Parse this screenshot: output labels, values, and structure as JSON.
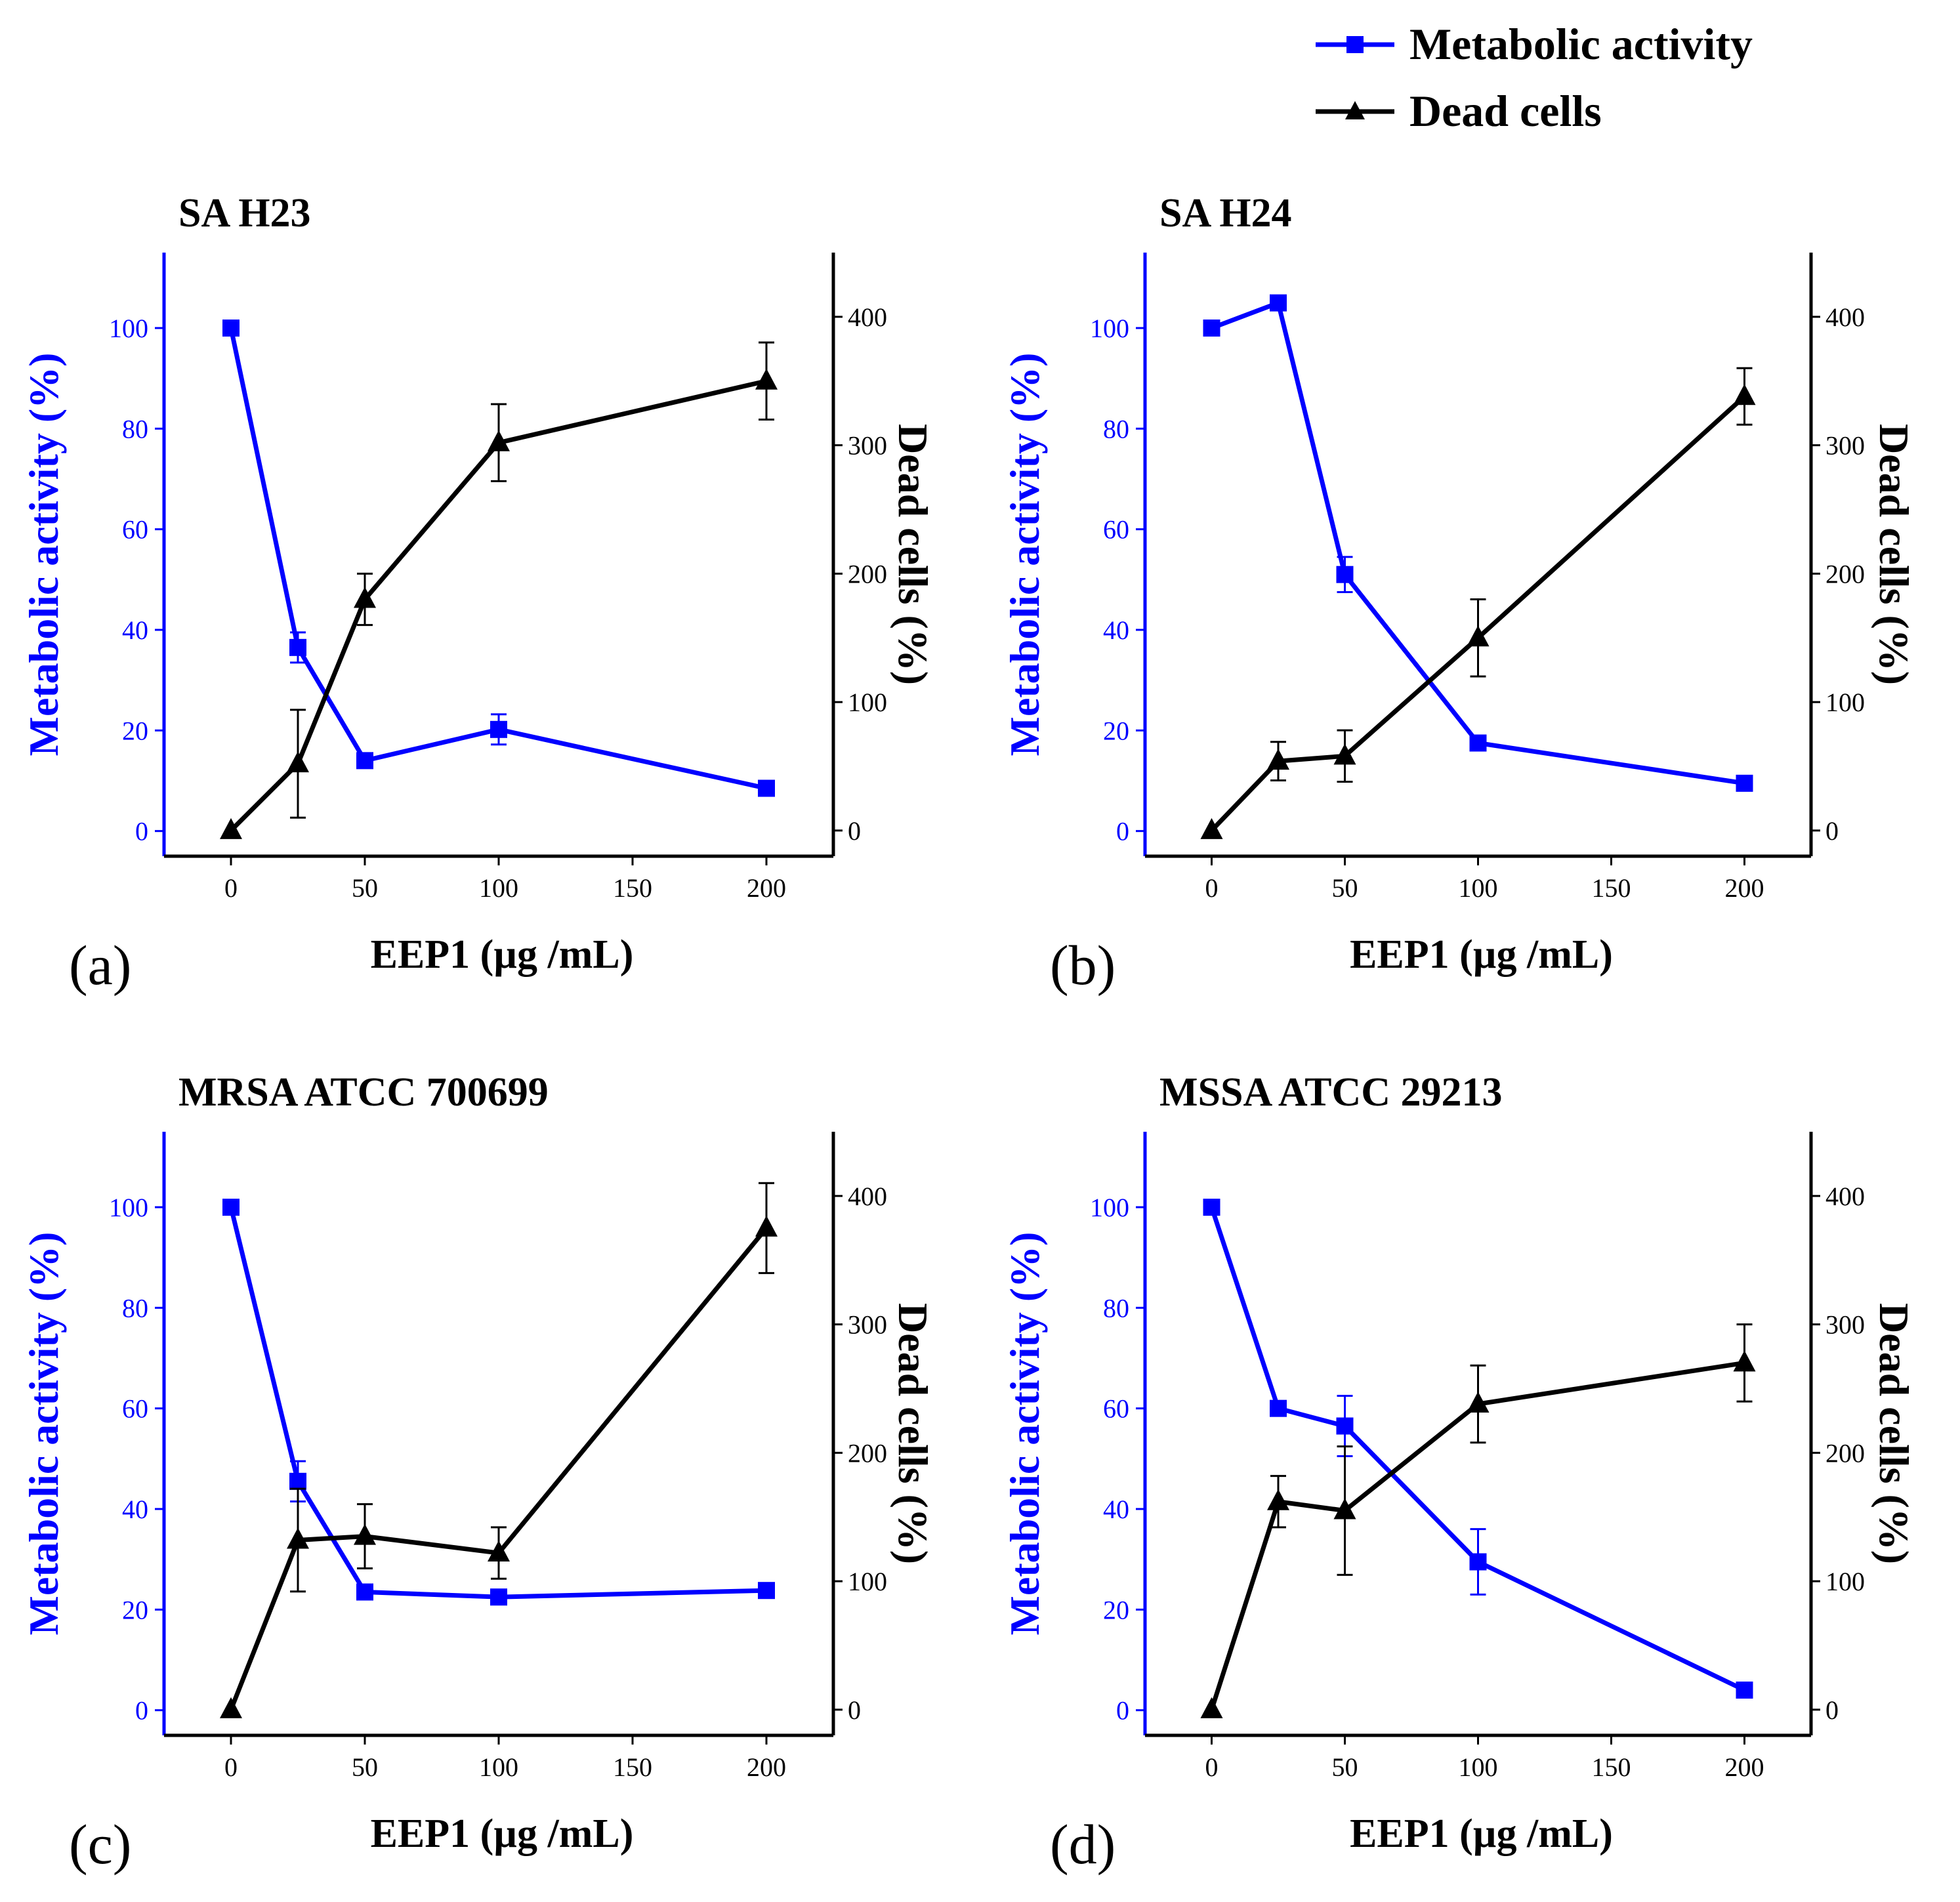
{
  "legend": {
    "items": [
      {
        "label": "Metabolic activity",
        "color": "#0000ff",
        "marker": "square"
      },
      {
        "label": "Dead cells",
        "color": "#000000",
        "marker": "triangle"
      }
    ]
  },
  "chart_data": [
    {
      "type": "line",
      "panel_label": "(a)",
      "title": "SA H23",
      "xlabel": "EEP1 (µg /mL)",
      "ylabel_left": "Metabolic activity (%)",
      "ylabel_right": "Dead cells (%)",
      "x": [
        0,
        25,
        50,
        100,
        200
      ],
      "xticks": [
        "0",
        "50",
        "100",
        "150",
        "200"
      ],
      "yticks_left": [
        "0",
        "20",
        "40",
        "60",
        "80",
        "100"
      ],
      "yticks_right": [
        "0",
        "100",
        "200",
        "300",
        "400"
      ],
      "xlim": [
        -25,
        225
      ],
      "ylim_left": [
        -5,
        115
      ],
      "ylim_right": [
        -20,
        450
      ],
      "series": [
        {
          "name": "Metabolic activity",
          "axis": "left",
          "color": "#0000ff",
          "values": [
            100,
            36.5,
            14,
            20.2,
            8.5
          ],
          "errors": [
            0,
            3,
            0,
            3,
            0
          ]
        },
        {
          "name": "Dead cells",
          "axis": "right",
          "color": "#000000",
          "values": [
            0,
            52,
            180,
            302,
            350
          ],
          "errors": [
            0,
            42,
            20,
            30,
            30
          ]
        }
      ]
    },
    {
      "type": "line",
      "panel_label": "(b)",
      "title": "SA H24",
      "xlabel": "EEP1 (µg /mL)",
      "ylabel_left": "Metabolic activity (%)",
      "ylabel_right": "Dead cells (%)",
      "x": [
        0,
        25,
        50,
        100,
        200
      ],
      "xticks": [
        "0",
        "50",
        "100",
        "150",
        "200"
      ],
      "yticks_left": [
        "0",
        "20",
        "40",
        "60",
        "80",
        "100"
      ],
      "yticks_right": [
        "0",
        "100",
        "200",
        "300",
        "400"
      ],
      "xlim": [
        -25,
        225
      ],
      "ylim_left": [
        -5,
        115
      ],
      "ylim_right": [
        -20,
        450
      ],
      "series": [
        {
          "name": "Metabolic activity",
          "axis": "left",
          "color": "#0000ff",
          "values": [
            100,
            105,
            51,
            17.5,
            9.5
          ],
          "errors": [
            0,
            0,
            3.5,
            0,
            0
          ]
        },
        {
          "name": "Dead cells",
          "axis": "right",
          "color": "#000000",
          "values": [
            0,
            54,
            58,
            150,
            338
          ],
          "errors": [
            0,
            15,
            20,
            30,
            22
          ]
        }
      ]
    },
    {
      "type": "line",
      "panel_label": "(c)",
      "title": "MRSA ATCC 700699",
      "xlabel": "EEP1 (µg /mL)",
      "ylabel_left": "Metabolic activity (%)",
      "ylabel_right": "Dead cells (%)",
      "x": [
        0,
        25,
        50,
        100,
        200
      ],
      "xticks": [
        "0",
        "50",
        "100",
        "150",
        "200"
      ],
      "yticks_left": [
        "0",
        "20",
        "40",
        "60",
        "80",
        "100"
      ],
      "yticks_right": [
        "0",
        "100",
        "200",
        "300",
        "400"
      ],
      "xlim": [
        -25,
        225
      ],
      "ylim_left": [
        -5,
        115
      ],
      "ylim_right": [
        -20,
        450
      ],
      "series": [
        {
          "name": "Metabolic activity",
          "axis": "left",
          "color": "#0000ff",
          "values": [
            100,
            45.5,
            23.5,
            22.5,
            23.8
          ],
          "errors": [
            0,
            4,
            0,
            0,
            0
          ]
        },
        {
          "name": "Dead cells",
          "axis": "right",
          "color": "#000000",
          "values": [
            0,
            132,
            135,
            122,
            375
          ],
          "errors": [
            0,
            40,
            25,
            20,
            35
          ]
        }
      ]
    },
    {
      "type": "line",
      "panel_label": "(d)",
      "title": "MSSA ATCC 29213",
      "xlabel": "EEP1 (µg /mL)",
      "ylabel_left": "Metabolic activity (%)",
      "ylabel_right": "Dead cells (%)",
      "x": [
        0,
        25,
        50,
        100,
        200
      ],
      "xticks": [
        "0",
        "50",
        "100",
        "150",
        "200"
      ],
      "yticks_left": [
        "0",
        "20",
        "40",
        "60",
        "80",
        "100"
      ],
      "yticks_right": [
        "0",
        "100",
        "200",
        "300",
        "400"
      ],
      "xlim": [
        -25,
        225
      ],
      "ylim_left": [
        -5,
        115
      ],
      "ylim_right": [
        -20,
        450
      ],
      "series": [
        {
          "name": "Metabolic activity",
          "axis": "left",
          "color": "#0000ff",
          "values": [
            100,
            60,
            56.5,
            29.5,
            4
          ],
          "errors": [
            0,
            0,
            6,
            6.5,
            0
          ]
        },
        {
          "name": "Dead cells",
          "axis": "right",
          "color": "#000000",
          "values": [
            0,
            162,
            155,
            238,
            270
          ],
          "errors": [
            0,
            20,
            50,
            30,
            30
          ]
        }
      ]
    }
  ]
}
